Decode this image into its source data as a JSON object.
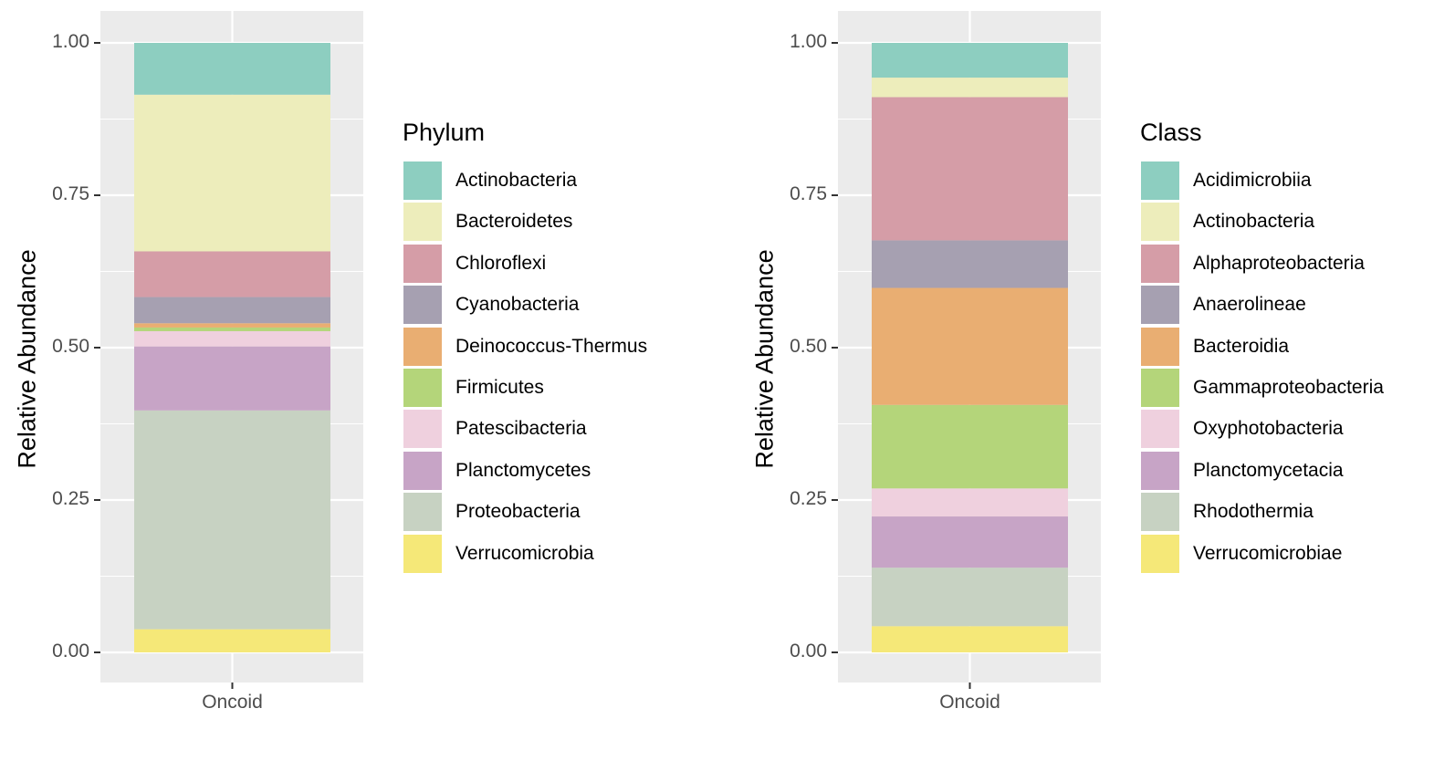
{
  "chart_data": [
    {
      "type": "bar",
      "stacked": true,
      "categories": [
        "Oncoid"
      ],
      "xlabel": "",
      "ylabel": "Relative Abundance",
      "ylim": [
        0,
        1
      ],
      "yticks": [
        "0.00",
        "0.25",
        "0.50",
        "0.75",
        "1.00"
      ],
      "grid": true,
      "legend": {
        "title": "Phylum",
        "placement": "right"
      },
      "series": [
        {
          "name": "Actinobacteria",
          "values": [
            0.085
          ],
          "color": "#8dcec0"
        },
        {
          "name": "Bacteroidetes",
          "values": [
            0.257
          ],
          "color": "#ededbb"
        },
        {
          "name": "Chloroflexi",
          "values": [
            0.075
          ],
          "color": "#d59da7"
        },
        {
          "name": "Cyanobacteria",
          "values": [
            0.043
          ],
          "color": "#a6a0b1"
        },
        {
          "name": "Deinococcus-Thermus",
          "values": [
            0.007
          ],
          "color": "#e9ae72"
        },
        {
          "name": "Firmicutes",
          "values": [
            0.006
          ],
          "color": "#b4d57a"
        },
        {
          "name": "Patescibacteria",
          "values": [
            0.025
          ],
          "color": "#efd0de"
        },
        {
          "name": "Planctomycetes",
          "values": [
            0.105
          ],
          "color": "#c7a4c6"
        },
        {
          "name": "Proteobacteria",
          "values": [
            0.359
          ],
          "color": "#c7d2c2"
        },
        {
          "name": "Verrucomicrobia",
          "values": [
            0.038
          ],
          "color": "#f5e878"
        }
      ]
    },
    {
      "type": "bar",
      "stacked": true,
      "categories": [
        "Oncoid"
      ],
      "xlabel": "",
      "ylabel": "Relative Abundance",
      "ylim": [
        0,
        1
      ],
      "yticks": [
        "0.00",
        "0.25",
        "0.50",
        "0.75",
        "1.00"
      ],
      "grid": true,
      "legend": {
        "title": "Class",
        "placement": "right"
      },
      "series": [
        {
          "name": "Acidimicrobiia",
          "values": [
            0.057
          ],
          "color": "#8dcec0"
        },
        {
          "name": "Actinobacteria",
          "values": [
            0.032
          ],
          "color": "#ededbb"
        },
        {
          "name": "Alphaproteobacteria",
          "values": [
            0.235
          ],
          "color": "#d59da7"
        },
        {
          "name": "Anaerolineae",
          "values": [
            0.078
          ],
          "color": "#a6a0b1"
        },
        {
          "name": "Bacteroidia",
          "values": [
            0.192
          ],
          "color": "#e9ae72"
        },
        {
          "name": "Gammaproteobacteria",
          "values": [
            0.137
          ],
          "color": "#b4d57a"
        },
        {
          "name": "Oxyphotobacteria",
          "values": [
            0.046
          ],
          "color": "#efd0de"
        },
        {
          "name": "Planctomycetacia",
          "values": [
            0.084
          ],
          "color": "#c7a4c6"
        },
        {
          "name": "Rhodothermia",
          "values": [
            0.096
          ],
          "color": "#c7d2c2"
        },
        {
          "name": "Verrucomicrobiae",
          "values": [
            0.043
          ],
          "color": "#f5e878"
        }
      ]
    }
  ]
}
